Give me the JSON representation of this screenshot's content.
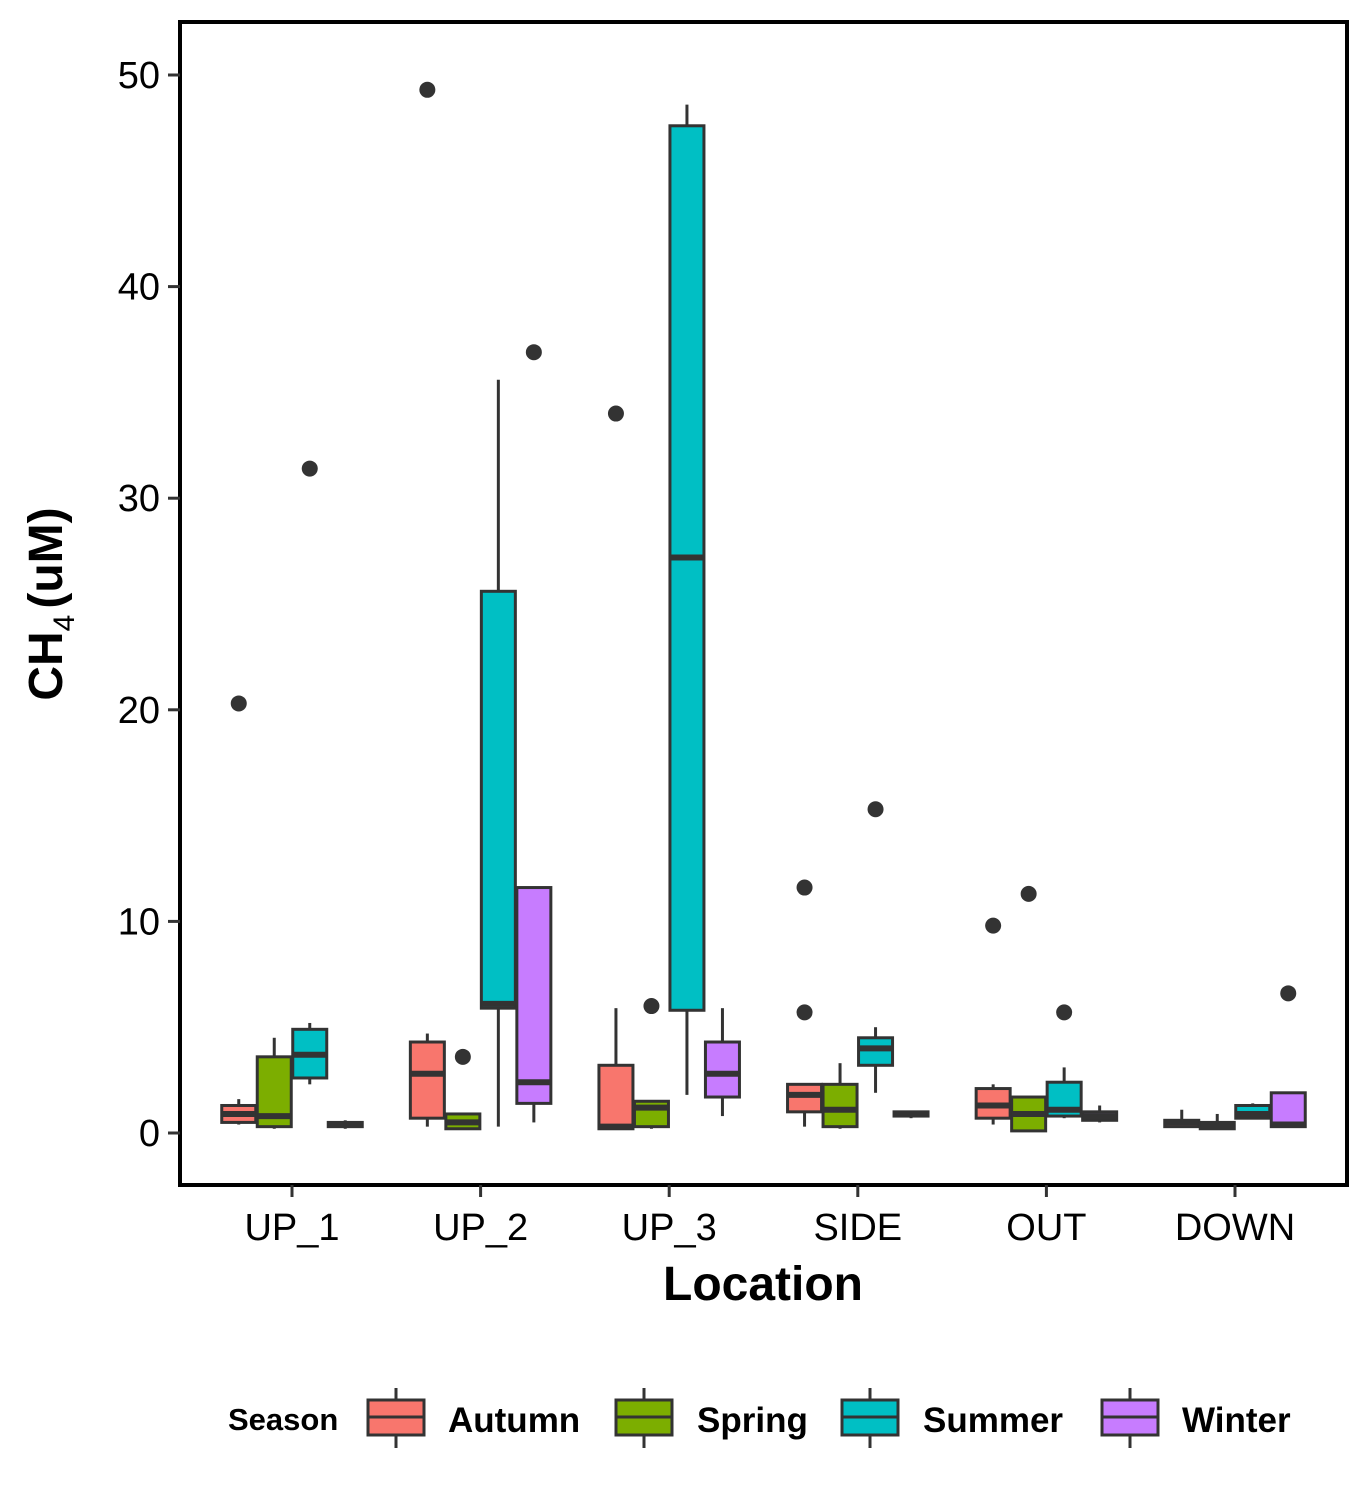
{
  "chart_data": {
    "type": "boxplot",
    "xlabel": "Location",
    "ylabel_main": "CH",
    "ylabel_sub": "4",
    "ylabel_unit": "(uM)",
    "ylim": [
      -2,
      52
    ],
    "yticks": [
      0,
      10,
      20,
      30,
      40,
      50
    ],
    "grid": false,
    "legend_position": "bottom",
    "legend_title": "Season",
    "categories": [
      "UP_1",
      "UP_2",
      "UP_3",
      "SIDE",
      "OUT",
      "DOWN"
    ],
    "series": [
      {
        "name": "Autumn",
        "color": "#F8766D",
        "boxes": [
          {
            "min": 0.4,
            "q1": 0.5,
            "median": 0.9,
            "q3": 1.3,
            "max": 1.6,
            "outliers": [
              20.3
            ]
          },
          {
            "min": 0.3,
            "q1": 0.7,
            "median": 2.8,
            "q3": 4.3,
            "max": 4.7,
            "outliers": [
              49.3
            ]
          },
          {
            "min": 0.2,
            "q1": 0.2,
            "median": 0.3,
            "q3": 3.2,
            "max": 5.9,
            "outliers": [
              34.0
            ]
          },
          {
            "min": 0.3,
            "q1": 1.0,
            "median": 1.8,
            "q3": 2.3,
            "max": 2.3,
            "outliers": [
              11.6,
              5.7
            ]
          },
          {
            "min": 0.4,
            "q1": 0.7,
            "median": 1.3,
            "q3": 2.1,
            "max": 2.3,
            "outliers": [
              9.8
            ]
          },
          {
            "min": 0.3,
            "q1": 0.3,
            "median": 0.5,
            "q3": 0.6,
            "max": 1.1,
            "outliers": []
          }
        ]
      },
      {
        "name": "Spring",
        "color": "#7CAE00",
        "boxes": [
          {
            "min": 0.2,
            "q1": 0.3,
            "median": 0.8,
            "q3": 3.6,
            "max": 4.5,
            "outliers": []
          },
          {
            "min": 0.2,
            "q1": 0.2,
            "median": 0.5,
            "q3": 0.9,
            "max": 0.9,
            "outliers": [
              3.6
            ]
          },
          {
            "min": 0.2,
            "q1": 0.3,
            "median": 1.2,
            "q3": 1.5,
            "max": 1.5,
            "outliers": [
              6.0
            ]
          },
          {
            "min": 0.2,
            "q1": 0.3,
            "median": 1.1,
            "q3": 2.3,
            "max": 3.3,
            "outliers": []
          },
          {
            "min": 0.1,
            "q1": 0.1,
            "median": 0.9,
            "q3": 1.7,
            "max": 1.7,
            "outliers": [
              11.3
            ]
          },
          {
            "min": 0.2,
            "q1": 0.2,
            "median": 0.4,
            "q3": 0.5,
            "max": 0.9,
            "outliers": []
          }
        ]
      },
      {
        "name": "Summer",
        "color": "#00BFC4",
        "boxes": [
          {
            "min": 2.3,
            "q1": 2.6,
            "median": 3.7,
            "q3": 4.9,
            "max": 5.2,
            "outliers": [
              31.4
            ]
          },
          {
            "min": 0.3,
            "q1": 5.9,
            "median": 6.1,
            "q3": 25.6,
            "max": 35.6,
            "outliers": []
          },
          {
            "min": 1.8,
            "q1": 5.8,
            "median": 27.2,
            "q3": 47.6,
            "max": 48.6,
            "outliers": []
          },
          {
            "min": 1.9,
            "q1": 3.2,
            "median": 4.0,
            "q3": 4.5,
            "max": 5.0,
            "outliers": [
              15.3
            ]
          },
          {
            "min": 0.7,
            "q1": 0.8,
            "median": 1.1,
            "q3": 2.4,
            "max": 3.1,
            "outliers": [
              5.7
            ]
          },
          {
            "min": 0.7,
            "q1": 0.7,
            "median": 0.9,
            "q3": 1.3,
            "max": 1.4,
            "outliers": []
          }
        ]
      },
      {
        "name": "Winter",
        "color": "#C77CFF",
        "boxes": [
          {
            "min": 0.2,
            "q1": 0.3,
            "median": 0.4,
            "q3": 0.5,
            "max": 0.6,
            "outliers": []
          },
          {
            "min": 0.5,
            "q1": 1.4,
            "median": 2.4,
            "q3": 11.6,
            "max": 11.6,
            "outliers": [
              36.9
            ]
          },
          {
            "min": 0.8,
            "q1": 1.7,
            "median": 2.8,
            "q3": 4.3,
            "max": 5.9,
            "outliers": []
          },
          {
            "min": 0.7,
            "q1": 0.8,
            "median": 0.9,
            "q3": 1.0,
            "max": 1.0,
            "outliers": []
          },
          {
            "min": 0.5,
            "q1": 0.6,
            "median": 0.8,
            "q3": 1.0,
            "max": 1.3,
            "outliers": []
          },
          {
            "min": 0.3,
            "q1": 0.3,
            "median": 0.4,
            "q3": 1.9,
            "max": 1.9,
            "outliers": [
              6.6
            ]
          }
        ]
      }
    ]
  }
}
